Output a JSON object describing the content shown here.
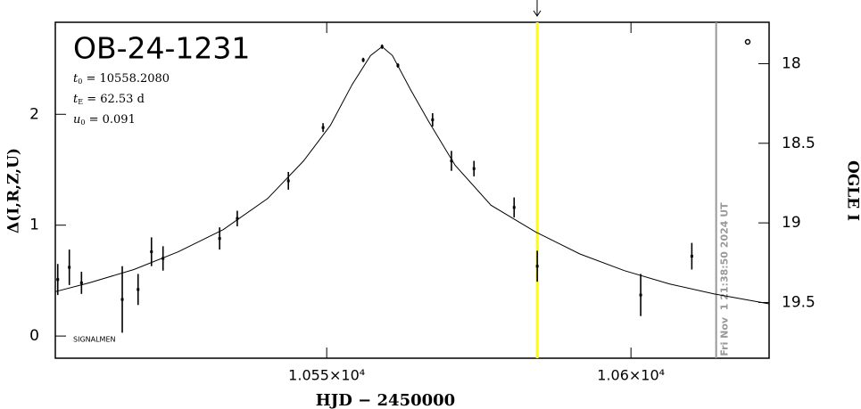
{
  "chart_data": {
    "type": "lightcurve",
    "title": "OB-24-1231",
    "params": [
      {
        "symbol": "t",
        "sub": "0",
        "text": " = 10558.2080"
      },
      {
        "symbol": "t",
        "sub": "E",
        "text": " = 62.53 d"
      },
      {
        "symbol": "u",
        "sub": "0",
        "text": " = 0.091"
      }
    ],
    "footer_note": "SIGNALMEN",
    "xlabel": "HJD − 2450000",
    "ylabel": "Δ(I,R,Z,U)",
    "y2label": "OGLE I",
    "xlim": [
      10505.4,
      10622.7
    ],
    "ylim": [
      -0.2,
      2.83
    ],
    "y2lim": [
      19.85,
      17.74
    ],
    "xticks": [
      {
        "value": 10550,
        "label": "1.055×10⁴"
      },
      {
        "value": 10600,
        "label": "1.06×10⁴"
      }
    ],
    "yticks": [
      0,
      1,
      2
    ],
    "y2ticks": [
      18,
      18.5,
      19,
      19.5
    ],
    "series": [
      {
        "name": "data",
        "color": "#000000",
        "x": [
          10505.8,
          10507.7,
          10509.7,
          10516.4,
          10519.0,
          10521.2,
          10523.1,
          10532.4,
          10535.3,
          10543.7,
          10549.4,
          10556.0,
          10559.1,
          10561.7,
          10567.4,
          10570.5,
          10574.2,
          10580.8,
          10584.6,
          10601.6,
          10610.0
        ],
        "values": [
          0.51,
          0.62,
          0.48,
          0.33,
          0.42,
          0.76,
          0.7,
          0.88,
          1.06,
          1.4,
          1.88,
          2.49,
          2.61,
          2.44,
          1.95,
          1.58,
          1.51,
          1.16,
          0.63,
          0.37,
          0.72
        ],
        "errors": [
          0.14,
          0.16,
          0.1,
          0.3,
          0.14,
          0.13,
          0.11,
          0.1,
          0.07,
          0.08,
          0.04,
          0.02,
          0.02,
          0.02,
          0.06,
          0.09,
          0.07,
          0.09,
          0.14,
          0.19,
          0.12
        ]
      },
      {
        "name": "model",
        "color": "#000000",
        "x": [
          10505.4,
          10511.0,
          10518.3,
          10525.6,
          10533.0,
          10540.3,
          10546.2,
          10550.6,
          10554.2,
          10557.2,
          10559.1,
          10560.8,
          10563.8,
          10566.7,
          10571.1,
          10577.0,
          10584.3,
          10591.6,
          10598.9,
          10606.3,
          10613.6,
          10622.7
        ],
        "values": [
          0.4,
          0.48,
          0.6,
          0.76,
          0.96,
          1.24,
          1.58,
          1.9,
          2.27,
          2.53,
          2.61,
          2.53,
          2.22,
          1.94,
          1.54,
          1.18,
          0.94,
          0.74,
          0.59,
          0.47,
          0.38,
          0.29
        ]
      }
    ],
    "now_line": {
      "x": 10584.6,
      "color": "#ffff00"
    },
    "date_line": {
      "x": 10614.0,
      "color": "#999999",
      "label": "Fri Nov  1 21:38:50 2024 UT"
    }
  }
}
